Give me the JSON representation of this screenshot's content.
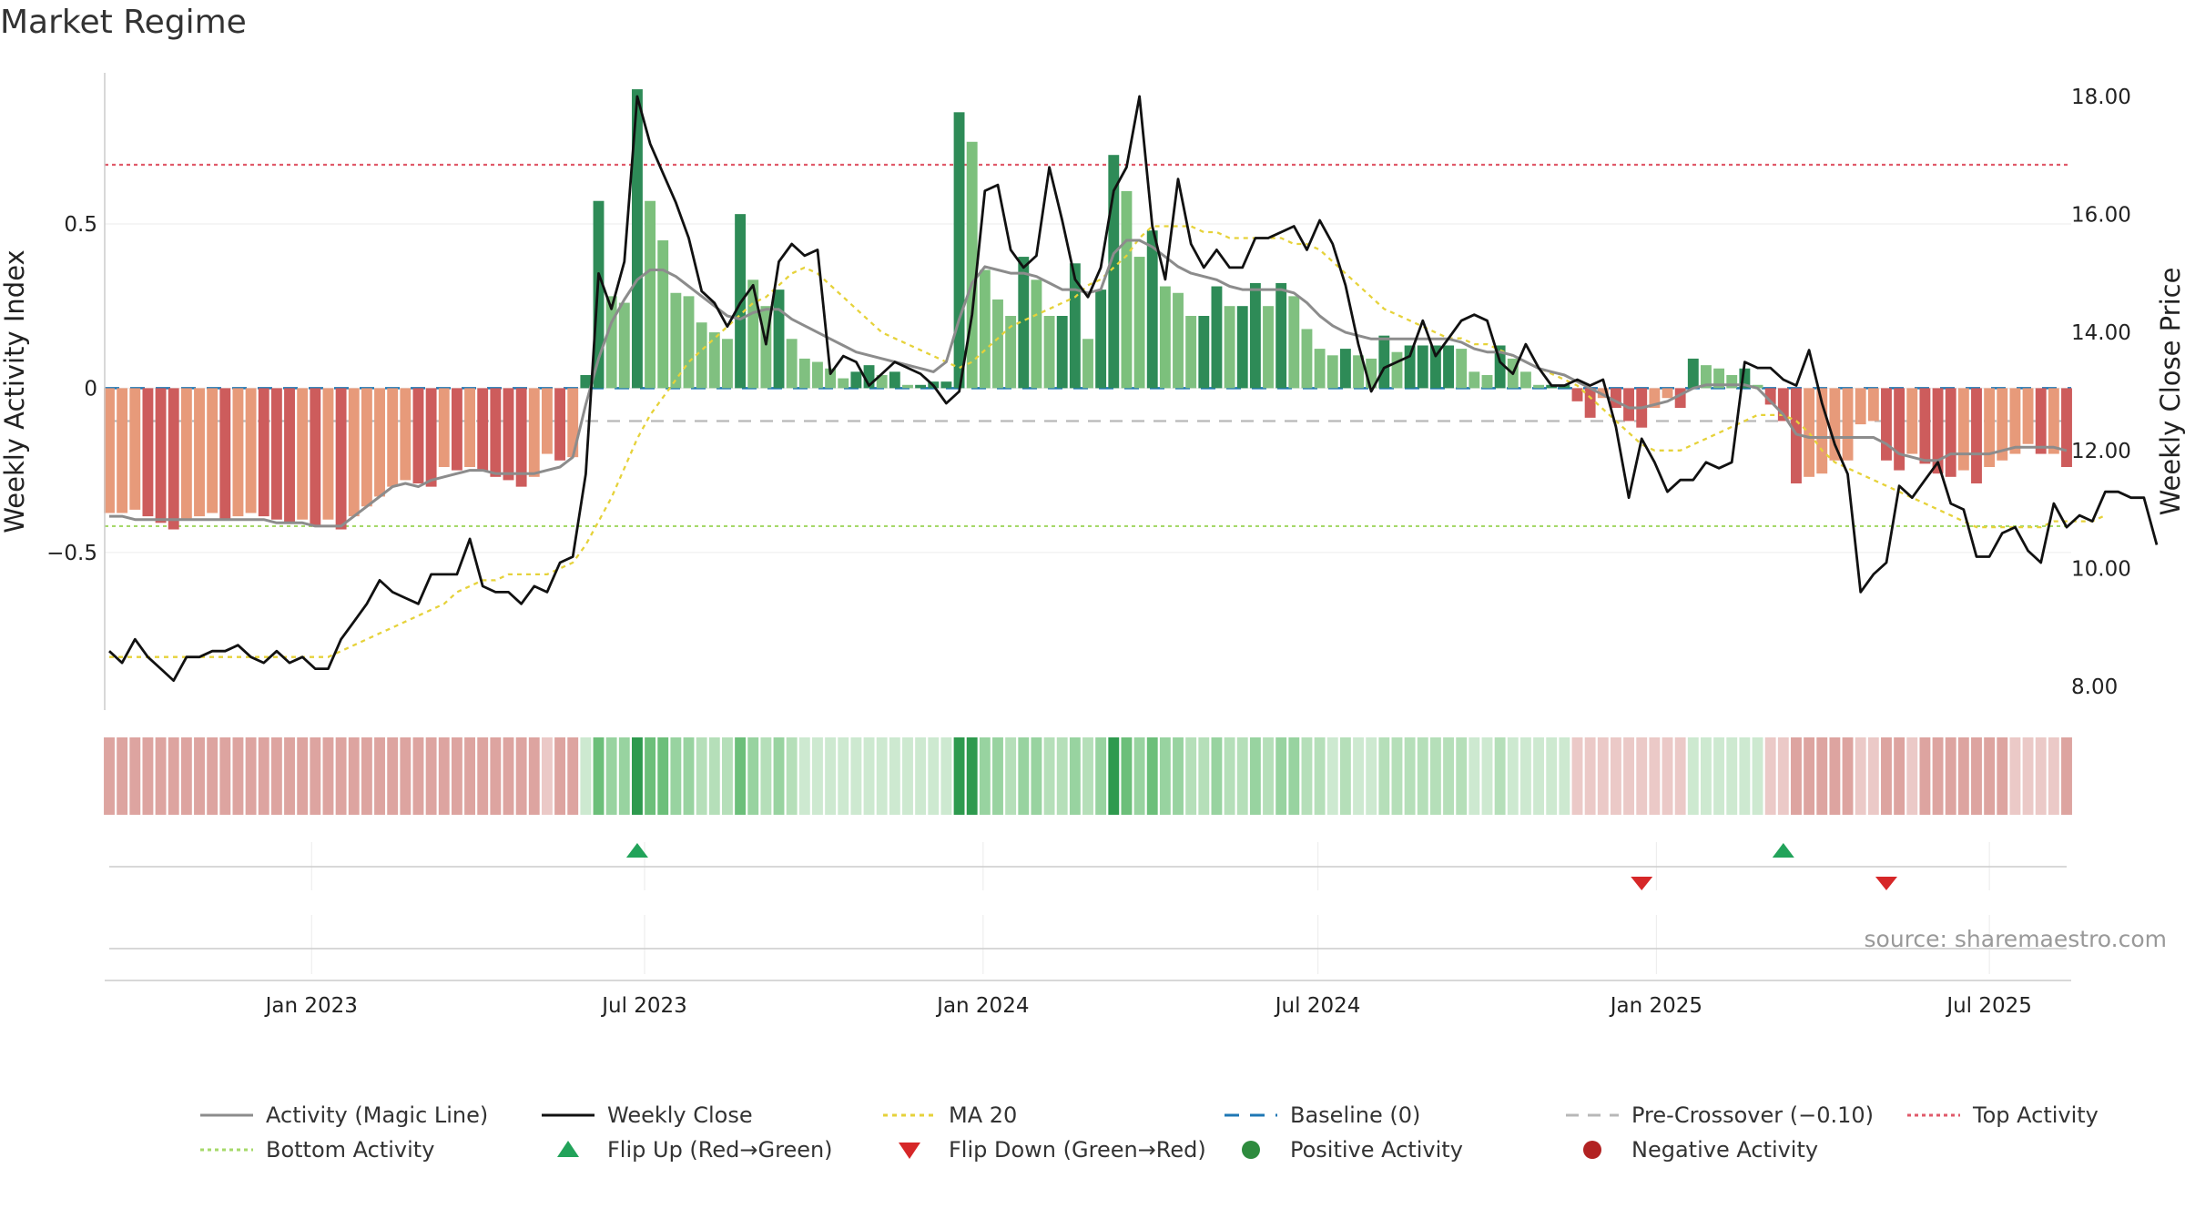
{
  "title": "Market Regime",
  "source": "source: sharemaestro.com",
  "colors": {
    "activity_line": "#8c8c8c",
    "close_line": "#111111",
    "ma20": "#e6d23a",
    "baseline": "#1f77b4",
    "pre_crossover": "#b8b8b8",
    "top_activity": "#e05a6a",
    "bottom_activity": "#a6d96a",
    "flip_up": "#22a35a",
    "flip_down": "#d62728",
    "positive": "#2e8b3e",
    "negative": "#b22222"
  },
  "chart_data": {
    "type": "bar",
    "x_start": "2022-09-13",
    "x_step_days": 7,
    "x_ticks": [
      "Jan 2023",
      "Jul 2023",
      "Jan 2024",
      "Jul 2024",
      "Jan 2025",
      "Jul 2025"
    ],
    "y_left": {
      "label": "Weekly Activity Index",
      "ticks": [
        "0.5",
        "0",
        "−0.5"
      ],
      "range": [
        -0.98,
        0.96
      ]
    },
    "y_right": {
      "label": "Weekly Close Price",
      "ticks": [
        "18.00",
        "16.00",
        "14.00",
        "12.00",
        "10.00",
        "8.00"
      ],
      "range": [
        7.6,
        18.4
      ]
    },
    "reference_lines": {
      "top_activity": 0.68,
      "bottom_activity": -0.42,
      "baseline": 0,
      "pre_crossover": -0.1
    },
    "series": [
      {
        "name": "Weekly Activity Index",
        "kind": "bar",
        "values": [
          -0.38,
          -0.38,
          -0.37,
          -0.39,
          -0.41,
          -0.43,
          -0.4,
          -0.39,
          -0.38,
          -0.4,
          -0.39,
          -0.38,
          -0.39,
          -0.4,
          -0.41,
          -0.4,
          -0.42,
          -0.4,
          -0.43,
          -0.39,
          -0.36,
          -0.33,
          -0.3,
          -0.28,
          -0.29,
          -0.3,
          -0.24,
          -0.25,
          -0.24,
          -0.25,
          -0.27,
          -0.28,
          -0.3,
          -0.27,
          -0.2,
          -0.22,
          -0.21,
          0.04,
          0.57,
          0.28,
          0.26,
          0.91,
          0.57,
          0.45,
          0.29,
          0.28,
          0.2,
          0.17,
          0.15,
          0.53,
          0.33,
          0.25,
          0.3,
          0.15,
          0.09,
          0.08,
          0.06,
          0.03,
          0.05,
          0.07,
          0.04,
          0.05,
          0.01,
          0.01,
          0.02,
          0.02,
          0.84,
          0.75,
          0.36,
          0.27,
          0.22,
          0.4,
          0.33,
          0.22,
          0.22,
          0.38,
          0.15,
          0.3,
          0.71,
          0.6,
          0.4,
          0.48,
          0.31,
          0.29,
          0.22,
          0.22,
          0.31,
          0.25,
          0.25,
          0.32,
          0.25,
          0.32,
          0.28,
          0.18,
          0.12,
          0.1,
          0.12,
          0.1,
          0.09,
          0.16,
          0.11,
          0.13,
          0.13,
          0.13,
          0.13,
          0.12,
          0.05,
          0.04,
          0.13,
          0.09,
          0.05,
          0.01,
          0.01,
          0.01,
          -0.04,
          -0.09,
          -0.03,
          -0.06,
          -0.1,
          -0.12,
          -0.06,
          -0.03,
          -0.06,
          0.09,
          0.07,
          0.06,
          0.04,
          0.06,
          0.01,
          -0.05,
          -0.1,
          -0.29,
          -0.27,
          -0.26,
          -0.22,
          -0.22,
          -0.11,
          -0.1,
          -0.22,
          -0.25,
          -0.2,
          -0.23,
          -0.26,
          -0.27,
          -0.25,
          -0.29,
          -0.24,
          -0.22,
          -0.2,
          -0.17,
          -0.2,
          -0.2,
          -0.24
        ]
      },
      {
        "name": "Activity (Magic Line)",
        "kind": "line",
        "values": [
          -0.39,
          -0.39,
          -0.4,
          -0.4,
          -0.4,
          -0.4,
          -0.4,
          -0.4,
          -0.4,
          -0.4,
          -0.4,
          -0.4,
          -0.4,
          -0.41,
          -0.41,
          -0.41,
          -0.42,
          -0.42,
          -0.42,
          -0.39,
          -0.36,
          -0.33,
          -0.3,
          -0.29,
          -0.3,
          -0.28,
          -0.27,
          -0.26,
          -0.25,
          -0.25,
          -0.26,
          -0.26,
          -0.26,
          -0.26,
          -0.25,
          -0.24,
          -0.21,
          -0.05,
          0.09,
          0.2,
          0.27,
          0.33,
          0.36,
          0.36,
          0.34,
          0.31,
          0.28,
          0.25,
          0.22,
          0.21,
          0.23,
          0.24,
          0.24,
          0.21,
          0.19,
          0.17,
          0.15,
          0.13,
          0.11,
          0.1,
          0.09,
          0.08,
          0.07,
          0.06,
          0.05,
          0.08,
          0.21,
          0.32,
          0.37,
          0.36,
          0.35,
          0.35,
          0.34,
          0.32,
          0.3,
          0.3,
          0.29,
          0.3,
          0.41,
          0.45,
          0.45,
          0.43,
          0.4,
          0.37,
          0.35,
          0.34,
          0.33,
          0.31,
          0.3,
          0.3,
          0.3,
          0.3,
          0.29,
          0.26,
          0.22,
          0.19,
          0.17,
          0.16,
          0.15,
          0.15,
          0.15,
          0.15,
          0.15,
          0.15,
          0.15,
          0.14,
          0.12,
          0.11,
          0.11,
          0.1,
          0.08,
          0.06,
          0.05,
          0.04,
          0.02,
          0.0,
          -0.02,
          -0.04,
          -0.06,
          -0.06,
          -0.05,
          -0.04,
          -0.02,
          0.0,
          0.01,
          0.01,
          0.01,
          0.01,
          0.0,
          -0.04,
          -0.08,
          -0.14,
          -0.15,
          -0.15,
          -0.15,
          -0.15,
          -0.15,
          -0.15,
          -0.17,
          -0.2,
          -0.21,
          -0.22,
          -0.22,
          -0.2,
          -0.2,
          -0.2,
          -0.2,
          -0.19,
          -0.18,
          -0.18,
          -0.18,
          -0.18,
          -0.19
        ]
      },
      {
        "name": "Weekly Close",
        "kind": "line",
        "axis": "right",
        "values": [
          8.6,
          8.4,
          8.8,
          8.5,
          8.3,
          8.1,
          8.5,
          8.5,
          8.6,
          8.6,
          8.7,
          8.5,
          8.4,
          8.6,
          8.4,
          8.5,
          8.3,
          8.3,
          8.8,
          9.1,
          9.4,
          9.8,
          9.6,
          9.5,
          9.4,
          9.9,
          9.9,
          9.9,
          10.5,
          9.7,
          9.6,
          9.6,
          9.4,
          9.7,
          9.6,
          10.1,
          10.2,
          11.6,
          15.0,
          14.4,
          15.2,
          18.0,
          17.2,
          16.7,
          16.2,
          15.6,
          14.7,
          14.5,
          14.1,
          14.5,
          14.8,
          13.8,
          15.2,
          15.5,
          15.3,
          15.4,
          13.3,
          13.6,
          13.5,
          13.1,
          13.3,
          13.5,
          13.4,
          13.3,
          13.1,
          12.8,
          13.0,
          14.3,
          16.4,
          16.5,
          15.4,
          15.1,
          15.3,
          16.8,
          15.9,
          14.9,
          14.6,
          15.1,
          16.4,
          16.8,
          18.0,
          15.8,
          14.9,
          16.6,
          15.5,
          15.1,
          15.4,
          15.1,
          15.1,
          15.6,
          15.6,
          15.7,
          15.8,
          15.4,
          15.9,
          15.5,
          14.8,
          13.8,
          13.0,
          13.4,
          13.5,
          13.6,
          14.2,
          13.6,
          13.9,
          14.2,
          14.3,
          14.2,
          13.5,
          13.3,
          13.8,
          13.4,
          13.1,
          13.1,
          13.2,
          13.1,
          13.2,
          12.4,
          11.2,
          12.2,
          11.8,
          11.3,
          11.5,
          11.5,
          11.8,
          11.7,
          11.8,
          13.5,
          13.4,
          13.4,
          13.2,
          13.1,
          13.7,
          12.8,
          12.1,
          11.6,
          9.6,
          9.9,
          10.1,
          11.4,
          11.2,
          11.5,
          11.8,
          11.1,
          11.0,
          10.2,
          10.2,
          10.6,
          10.7,
          10.3,
          10.1,
          11.1,
          10.7,
          10.9,
          10.8,
          11.3,
          11.3,
          11.2,
          11.2,
          10.4
        ]
      },
      {
        "name": "MA 20",
        "kind": "line",
        "axis": "right",
        "values": [
          8.5,
          8.5,
          8.5,
          8.5,
          8.5,
          8.5,
          8.5,
          8.5,
          8.5,
          8.5,
          8.5,
          8.5,
          8.5,
          8.5,
          8.5,
          8.5,
          8.5,
          8.5,
          8.6,
          8.7,
          8.8,
          8.9,
          9.0,
          9.1,
          9.2,
          9.3,
          9.4,
          9.6,
          9.7,
          9.8,
          9.8,
          9.9,
          9.9,
          9.9,
          9.9,
          10.0,
          10.1,
          10.4,
          10.8,
          11.2,
          11.7,
          12.2,
          12.6,
          12.9,
          13.2,
          13.5,
          13.7,
          13.9,
          14.1,
          14.3,
          14.5,
          14.6,
          14.8,
          15.0,
          15.1,
          15.0,
          14.8,
          14.6,
          14.4,
          14.2,
          14.0,
          13.9,
          13.8,
          13.7,
          13.6,
          13.5,
          13.4,
          13.5,
          13.7,
          13.9,
          14.1,
          14.2,
          14.3,
          14.4,
          14.5,
          14.6,
          14.8,
          14.9,
          15.1,
          15.3,
          15.6,
          15.8,
          15.8,
          15.8,
          15.8,
          15.7,
          15.7,
          15.6,
          15.6,
          15.6,
          15.6,
          15.6,
          15.5,
          15.5,
          15.4,
          15.2,
          15.0,
          14.8,
          14.6,
          14.4,
          14.3,
          14.2,
          14.1,
          14.0,
          13.9,
          13.9,
          13.8,
          13.8,
          13.7,
          13.6,
          13.5,
          13.4,
          13.3,
          13.2,
          13.1,
          12.9,
          12.7,
          12.5,
          12.3,
          12.1,
          12.0,
          12.0,
          12.0,
          12.1,
          12.2,
          12.3,
          12.4,
          12.5,
          12.6,
          12.6,
          12.6,
          12.5,
          12.3,
          12.0,
          11.8,
          11.7,
          11.6,
          11.5,
          11.4,
          11.3,
          11.2,
          11.1,
          11.0,
          10.9,
          10.8,
          10.7,
          10.7,
          10.7,
          10.7,
          10.7,
          10.7,
          10.8,
          10.8,
          10.8,
          10.8,
          10.9
        ]
      }
    ],
    "flip_up_dates": [
      "2023-06-27",
      "2025-03-11"
    ],
    "flip_down_dates": [
      "2024-12-24",
      "2025-05-06"
    ]
  },
  "legend": {
    "row1": [
      "Activity (Magic Line)",
      "Weekly Close",
      "MA 20",
      "Baseline (0)",
      "Pre-Crossover (−0.10)",
      "Top Activity"
    ],
    "row2": [
      "Bottom Activity",
      "Flip Up (Red→Green)",
      "Flip Down (Green→Red)",
      "Positive Activity",
      "Negative Activity"
    ]
  }
}
